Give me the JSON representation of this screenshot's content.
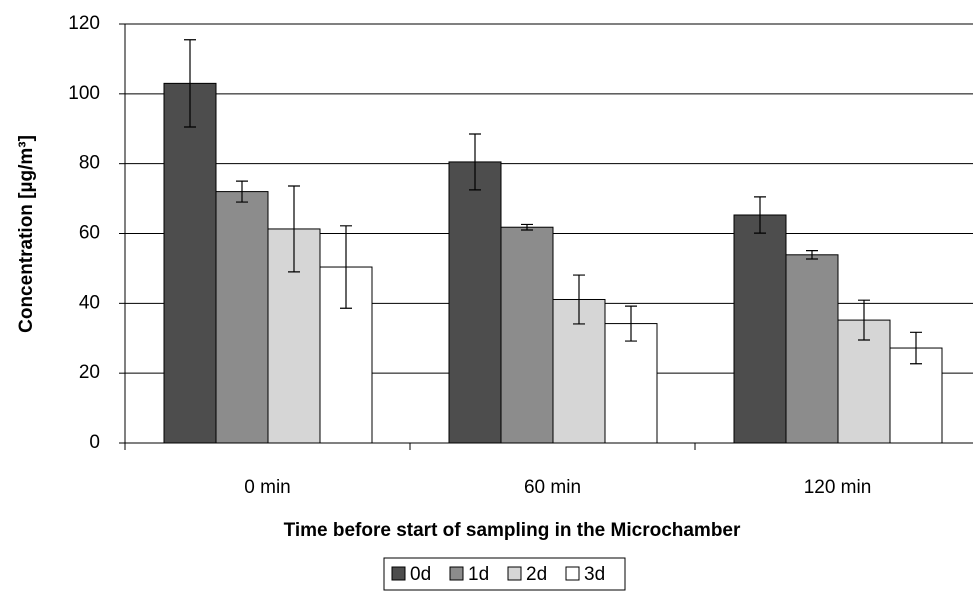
{
  "chart_data": {
    "type": "bar",
    "x_label": "Time before start of sampling in the Microchamber",
    "y_label": "Concentration [µg/m³]",
    "categories": [
      "0 min",
      "60 min",
      "120 min"
    ],
    "series": [
      {
        "name": "0d",
        "color": "#4d4d4d",
        "values": [
          103,
          80.5,
          65.3
        ],
        "errors": [
          12.5,
          8,
          5.2
        ]
      },
      {
        "name": "1d",
        "color": "#8c8c8c",
        "values": [
          72,
          61.8,
          53.9
        ],
        "errors": [
          3,
          0.8,
          1.2
        ]
      },
      {
        "name": "2d",
        "color": "#d6d6d6",
        "values": [
          61.3,
          41.1,
          35.2
        ],
        "errors": [
          12.3,
          7,
          5.7
        ]
      },
      {
        "name": "3d",
        "color": "#ffffff",
        "values": [
          50.4,
          34.2,
          27.2
        ],
        "errors": [
          11.8,
          5,
          4.5
        ]
      }
    ],
    "ylim": [
      0,
      120
    ],
    "yticks": [
      0,
      20,
      40,
      60,
      80,
      100,
      120
    ],
    "grid": true,
    "legend": "bottom"
  }
}
